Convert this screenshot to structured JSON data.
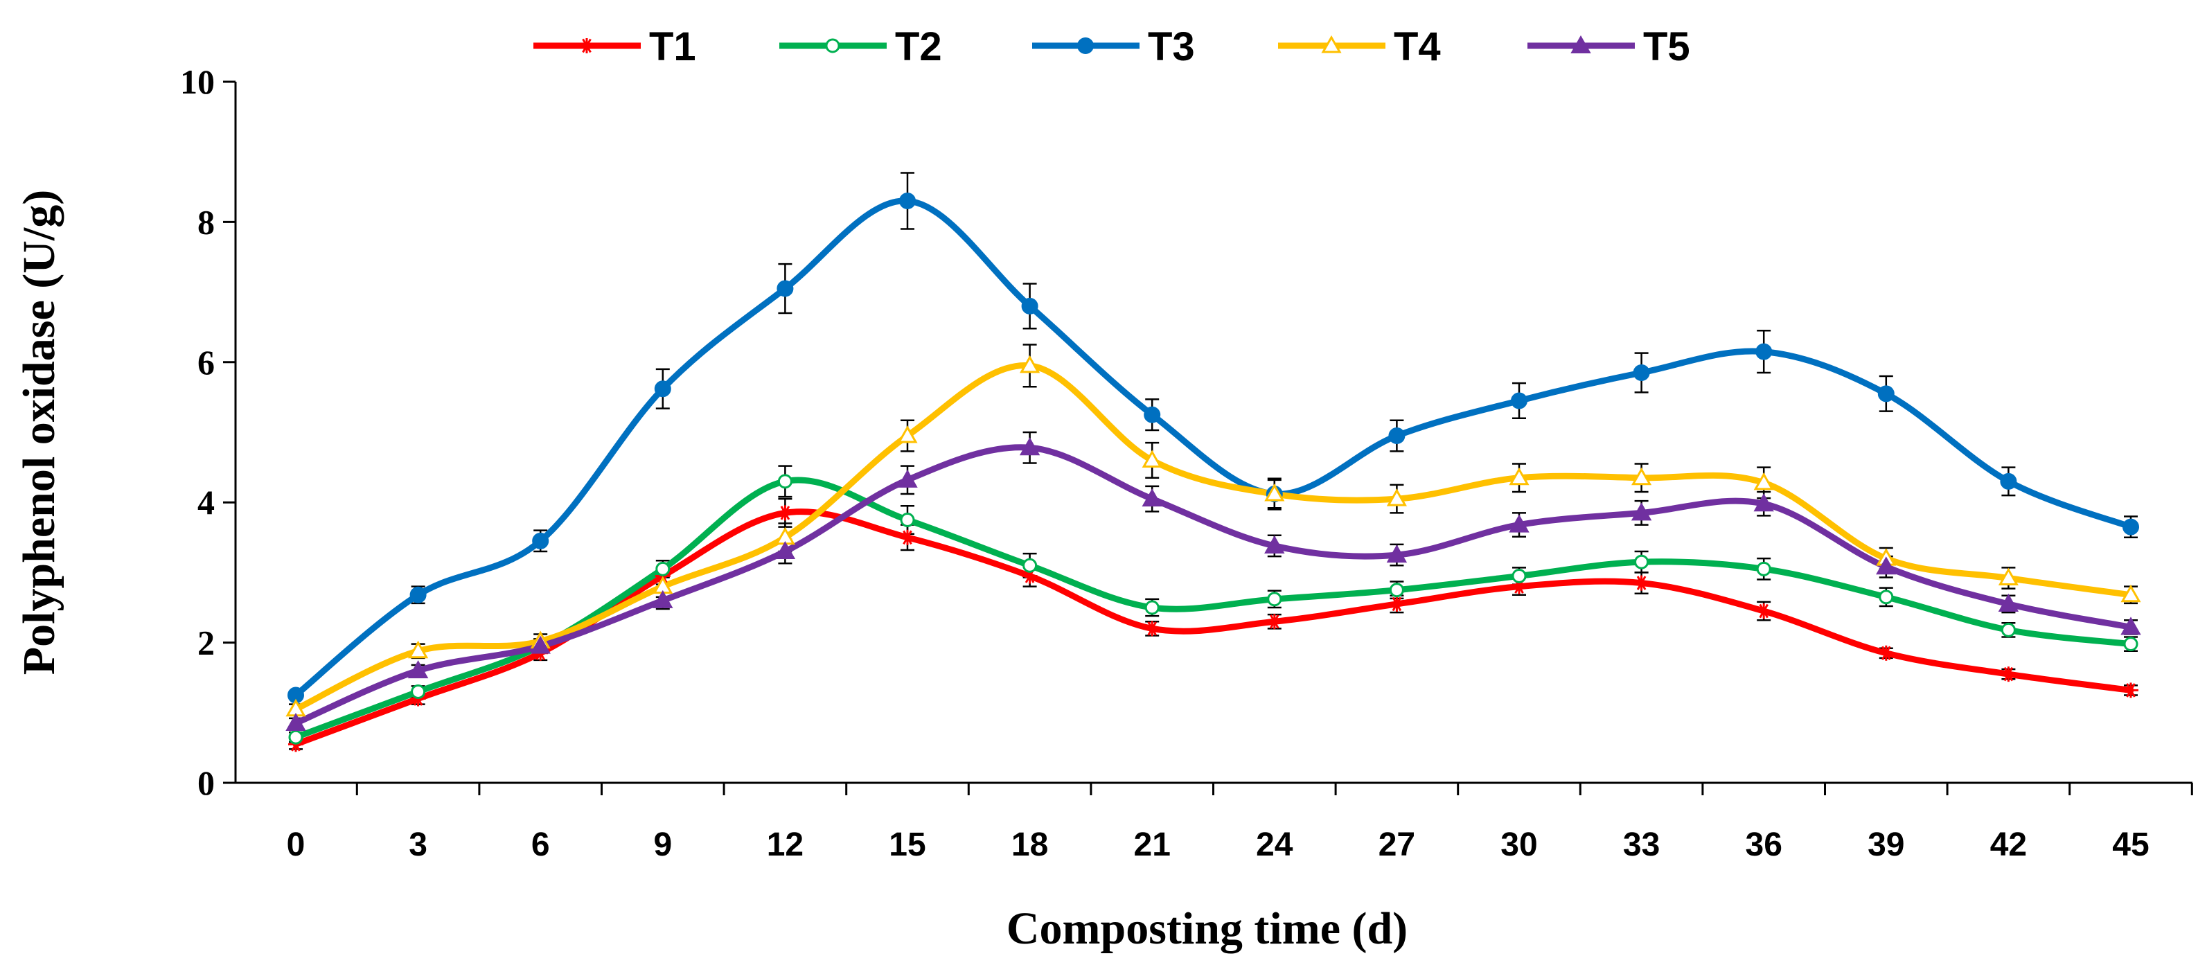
{
  "chart_data": {
    "type": "line",
    "title": "",
    "xlabel": "Composting time (d)",
    "ylabel": "Polyphenol oxidase (U/g)",
    "x": [
      0,
      3,
      6,
      9,
      12,
      15,
      18,
      21,
      24,
      27,
      30,
      33,
      36,
      39,
      42,
      45
    ],
    "x_tick_labels": [
      "0",
      "3",
      "6",
      "9",
      "12",
      "15",
      "18",
      "21",
      "24",
      "27",
      "30",
      "33",
      "36",
      "39",
      "42",
      "45"
    ],
    "ylim": [
      0,
      10
    ],
    "y_ticks": [
      0,
      2,
      4,
      6,
      8,
      10
    ],
    "y_tick_labels": [
      "0",
      "2",
      "4",
      "6",
      "8",
      "10"
    ],
    "grid": false,
    "legend_position": "top-center",
    "series": [
      {
        "name": "T1",
        "color": "#ff0000",
        "marker": "asterisk",
        "values": [
          0.55,
          1.2,
          1.85,
          2.95,
          3.85,
          3.5,
          2.95,
          2.2,
          2.3,
          2.55,
          2.8,
          2.85,
          2.45,
          1.85,
          1.55,
          1.32
        ],
        "errors": [
          0.07,
          0.08,
          0.1,
          0.12,
          0.2,
          0.18,
          0.15,
          0.1,
          0.1,
          0.12,
          0.12,
          0.15,
          0.13,
          0.07,
          0.07,
          0.07
        ]
      },
      {
        "name": "T2",
        "color": "#00b050",
        "marker": "open-circle",
        "values": [
          0.65,
          1.3,
          1.95,
          3.05,
          4.3,
          3.75,
          3.1,
          2.5,
          2.62,
          2.75,
          2.95,
          3.15,
          3.05,
          2.65,
          2.18,
          1.98
        ],
        "errors": [
          0.07,
          0.08,
          0.1,
          0.12,
          0.22,
          0.2,
          0.17,
          0.12,
          0.12,
          0.12,
          0.12,
          0.15,
          0.15,
          0.13,
          0.1,
          0.1
        ]
      },
      {
        "name": "T3",
        "color": "#0070c0",
        "marker": "filled-circle",
        "values": [
          1.25,
          2.68,
          3.45,
          5.62,
          7.05,
          8.3,
          6.8,
          5.25,
          4.12,
          4.95,
          5.45,
          5.85,
          6.15,
          5.55,
          4.3,
          3.65
        ],
        "errors": [
          0.05,
          0.12,
          0.15,
          0.28,
          0.35,
          0.4,
          0.32,
          0.22,
          0.22,
          0.22,
          0.25,
          0.28,
          0.3,
          0.25,
          0.2,
          0.15
        ]
      },
      {
        "name": "T4",
        "color": "#ffc000",
        "marker": "open-triangle",
        "values": [
          1.05,
          1.88,
          2.02,
          2.8,
          3.5,
          4.95,
          5.95,
          4.6,
          4.12,
          4.05,
          4.35,
          4.35,
          4.28,
          3.2,
          2.92,
          2.68
        ],
        "errors": [
          0.07,
          0.1,
          0.1,
          0.15,
          0.2,
          0.22,
          0.3,
          0.25,
          0.2,
          0.2,
          0.2,
          0.2,
          0.22,
          0.15,
          0.15,
          0.12
        ]
      },
      {
        "name": "T5",
        "color": "#7030a0",
        "marker": "filled-triangle",
        "values": [
          0.85,
          1.6,
          1.95,
          2.6,
          3.3,
          4.32,
          4.78,
          4.05,
          3.38,
          3.25,
          3.68,
          3.85,
          3.98,
          3.08,
          2.55,
          2.22
        ],
        "errors": [
          0.07,
          0.08,
          0.1,
          0.12,
          0.17,
          0.2,
          0.22,
          0.18,
          0.15,
          0.15,
          0.17,
          0.17,
          0.17,
          0.15,
          0.12,
          0.1
        ]
      }
    ]
  }
}
